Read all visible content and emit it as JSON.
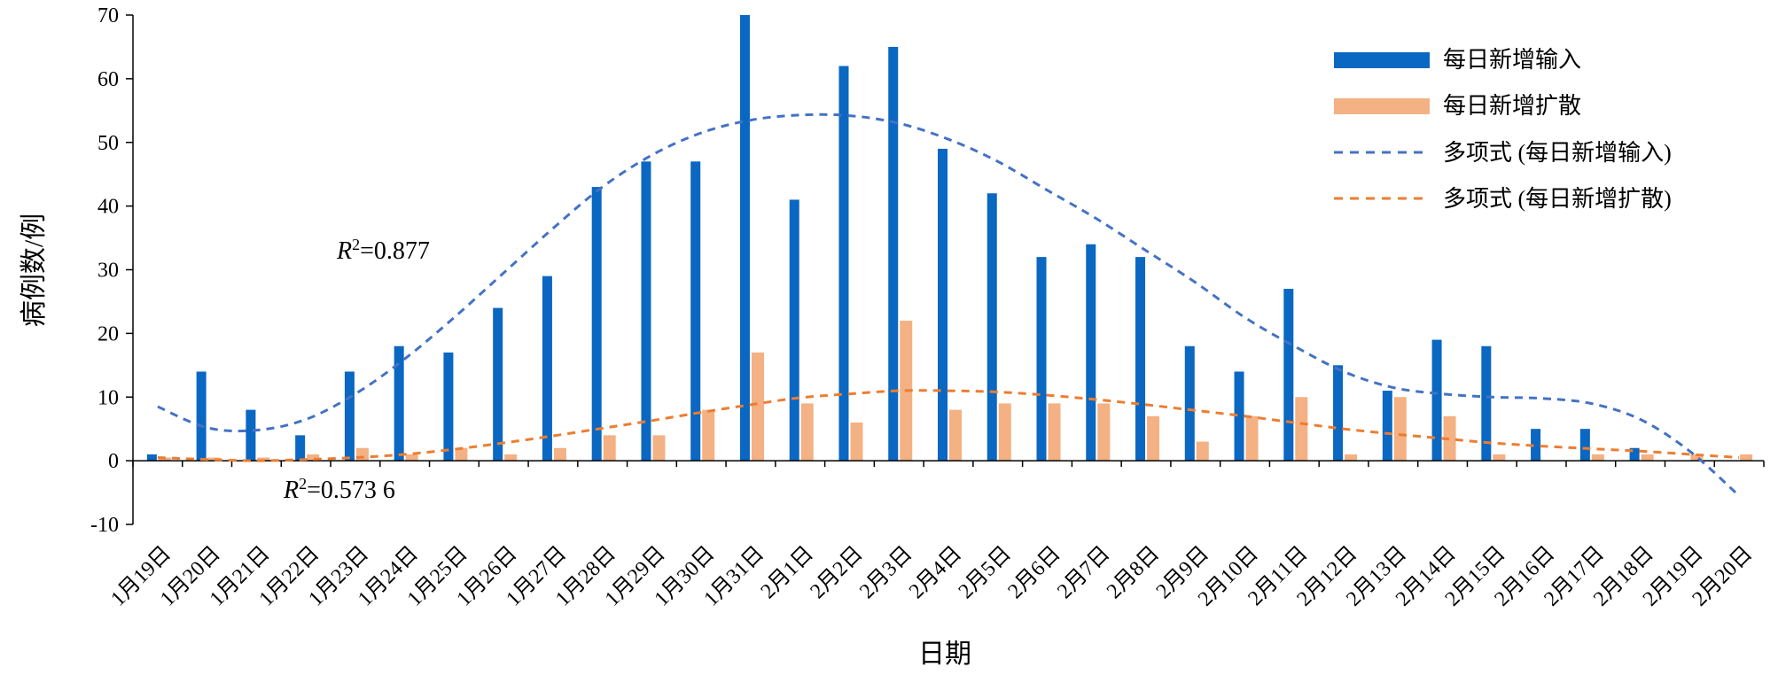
{
  "chart_data": {
    "type": "bar",
    "xlabel": "日期",
    "ylabel": "病例数/例",
    "ylim": [
      -10,
      70
    ],
    "yticks": [
      -10,
      0,
      10,
      20,
      30,
      40,
      50,
      60,
      70
    ],
    "grid": false,
    "legend_position": "top-right",
    "categories": [
      "1月19日",
      "1月20日",
      "1月21日",
      "1月22日",
      "1月23日",
      "1月24日",
      "1月25日",
      "1月26日",
      "1月27日",
      "1月28日",
      "1月29日",
      "1月30日",
      "1月31日",
      "2月1日",
      "2月2日",
      "2月3日",
      "2月4日",
      "2月5日",
      "2月6日",
      "2月7日",
      "2月8日",
      "2月9日",
      "2月10日",
      "2月11日",
      "2月12日",
      "2月13日",
      "2月14日",
      "2月15日",
      "2月16日",
      "2月17日",
      "2月18日",
      "2月19日",
      "2月20日"
    ],
    "series": [
      {
        "name": "每日新增输入",
        "type": "bar",
        "color": "#0a67c2",
        "values": [
          1,
          14,
          8,
          4,
          14,
          18,
          17,
          24,
          29,
          43,
          47,
          47,
          70,
          41,
          62,
          65,
          49,
          42,
          32,
          34,
          32,
          18,
          14,
          27,
          15,
          11,
          19,
          18,
          5,
          5,
          2,
          0,
          0
        ]
      },
      {
        "name": "每日新增扩散",
        "type": "bar",
        "color": "#f4b183",
        "values": [
          0.5,
          0.5,
          0.5,
          1,
          2,
          1,
          2,
          1,
          2,
          4,
          4,
          8,
          17,
          9,
          6,
          22,
          8,
          9,
          9,
          9,
          7,
          3,
          7,
          10,
          1,
          10,
          7,
          1,
          0,
          1,
          1,
          1,
          1
        ]
      },
      {
        "name": "多项式 (每日新增输入)",
        "type": "line",
        "style": "dashed",
        "color": "#4472c4",
        "values": [
          8.5,
          5.2,
          4.8,
          6.5,
          10.5,
          16,
          22.5,
          29.5,
          36.5,
          43,
          48,
          51.5,
          53.5,
          54.3,
          54.2,
          53,
          50.5,
          47,
          42.5,
          38,
          33,
          28,
          22.5,
          18,
          14,
          11.5,
          10.5,
          10,
          9.8,
          9,
          6.5,
          1.5,
          -5.5
        ]
      },
      {
        "name": "多项式 (每日新增扩散)",
        "type": "line",
        "style": "dashed",
        "color": "#ed7d31",
        "values": [
          0.5,
          0.2,
          0,
          0.2,
          0.5,
          1,
          1.8,
          2.8,
          3.9,
          5.1,
          6.3,
          7.6,
          8.8,
          9.9,
          10.5,
          11,
          11,
          10.8,
          10.3,
          9.6,
          8.8,
          7.9,
          7,
          6,
          5,
          4.2,
          3.5,
          2.8,
          2.3,
          1.9,
          1.5,
          1,
          0.5
        ]
      }
    ],
    "annotations": [
      {
        "text_r": "R",
        "text_sup": "2",
        "text_val": "=0.877",
        "series": "多项式 (每日新增输入)"
      },
      {
        "text_r": "R",
        "text_sup": "2",
        "text_val": "=0.573 6",
        "series": "多项式 (每日新增扩散)"
      }
    ]
  }
}
